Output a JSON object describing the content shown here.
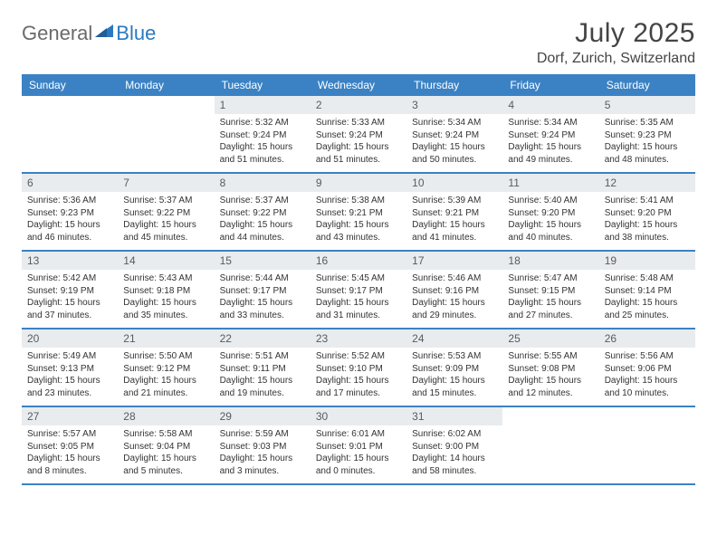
{
  "logo": {
    "text1": "General",
    "text2": "Blue",
    "icon_color": "#2a79c0",
    "text_color_gray": "#6a6a6a"
  },
  "title": "July 2025",
  "location": "Dorf, Zurich, Switzerland",
  "colors": {
    "header_bg": "#3b82c4",
    "header_text": "#ffffff",
    "daynum_bg": "#e9ecef",
    "daynum_text": "#5a5a5a",
    "body_text": "#333333",
    "row_border": "#3b82c4"
  },
  "weekdays": [
    "Sunday",
    "Monday",
    "Tuesday",
    "Wednesday",
    "Thursday",
    "Friday",
    "Saturday"
  ],
  "weeks": [
    [
      null,
      null,
      {
        "day": "1",
        "sunrise": "Sunrise: 5:32 AM",
        "sunset": "Sunset: 9:24 PM",
        "daylight": "Daylight: 15 hours and 51 minutes."
      },
      {
        "day": "2",
        "sunrise": "Sunrise: 5:33 AM",
        "sunset": "Sunset: 9:24 PM",
        "daylight": "Daylight: 15 hours and 51 minutes."
      },
      {
        "day": "3",
        "sunrise": "Sunrise: 5:34 AM",
        "sunset": "Sunset: 9:24 PM",
        "daylight": "Daylight: 15 hours and 50 minutes."
      },
      {
        "day": "4",
        "sunrise": "Sunrise: 5:34 AM",
        "sunset": "Sunset: 9:24 PM",
        "daylight": "Daylight: 15 hours and 49 minutes."
      },
      {
        "day": "5",
        "sunrise": "Sunrise: 5:35 AM",
        "sunset": "Sunset: 9:23 PM",
        "daylight": "Daylight: 15 hours and 48 minutes."
      }
    ],
    [
      {
        "day": "6",
        "sunrise": "Sunrise: 5:36 AM",
        "sunset": "Sunset: 9:23 PM",
        "daylight": "Daylight: 15 hours and 46 minutes."
      },
      {
        "day": "7",
        "sunrise": "Sunrise: 5:37 AM",
        "sunset": "Sunset: 9:22 PM",
        "daylight": "Daylight: 15 hours and 45 minutes."
      },
      {
        "day": "8",
        "sunrise": "Sunrise: 5:37 AM",
        "sunset": "Sunset: 9:22 PM",
        "daylight": "Daylight: 15 hours and 44 minutes."
      },
      {
        "day": "9",
        "sunrise": "Sunrise: 5:38 AM",
        "sunset": "Sunset: 9:21 PM",
        "daylight": "Daylight: 15 hours and 43 minutes."
      },
      {
        "day": "10",
        "sunrise": "Sunrise: 5:39 AM",
        "sunset": "Sunset: 9:21 PM",
        "daylight": "Daylight: 15 hours and 41 minutes."
      },
      {
        "day": "11",
        "sunrise": "Sunrise: 5:40 AM",
        "sunset": "Sunset: 9:20 PM",
        "daylight": "Daylight: 15 hours and 40 minutes."
      },
      {
        "day": "12",
        "sunrise": "Sunrise: 5:41 AM",
        "sunset": "Sunset: 9:20 PM",
        "daylight": "Daylight: 15 hours and 38 minutes."
      }
    ],
    [
      {
        "day": "13",
        "sunrise": "Sunrise: 5:42 AM",
        "sunset": "Sunset: 9:19 PM",
        "daylight": "Daylight: 15 hours and 37 minutes."
      },
      {
        "day": "14",
        "sunrise": "Sunrise: 5:43 AM",
        "sunset": "Sunset: 9:18 PM",
        "daylight": "Daylight: 15 hours and 35 minutes."
      },
      {
        "day": "15",
        "sunrise": "Sunrise: 5:44 AM",
        "sunset": "Sunset: 9:17 PM",
        "daylight": "Daylight: 15 hours and 33 minutes."
      },
      {
        "day": "16",
        "sunrise": "Sunrise: 5:45 AM",
        "sunset": "Sunset: 9:17 PM",
        "daylight": "Daylight: 15 hours and 31 minutes."
      },
      {
        "day": "17",
        "sunrise": "Sunrise: 5:46 AM",
        "sunset": "Sunset: 9:16 PM",
        "daylight": "Daylight: 15 hours and 29 minutes."
      },
      {
        "day": "18",
        "sunrise": "Sunrise: 5:47 AM",
        "sunset": "Sunset: 9:15 PM",
        "daylight": "Daylight: 15 hours and 27 minutes."
      },
      {
        "day": "19",
        "sunrise": "Sunrise: 5:48 AM",
        "sunset": "Sunset: 9:14 PM",
        "daylight": "Daylight: 15 hours and 25 minutes."
      }
    ],
    [
      {
        "day": "20",
        "sunrise": "Sunrise: 5:49 AM",
        "sunset": "Sunset: 9:13 PM",
        "daylight": "Daylight: 15 hours and 23 minutes."
      },
      {
        "day": "21",
        "sunrise": "Sunrise: 5:50 AM",
        "sunset": "Sunset: 9:12 PM",
        "daylight": "Daylight: 15 hours and 21 minutes."
      },
      {
        "day": "22",
        "sunrise": "Sunrise: 5:51 AM",
        "sunset": "Sunset: 9:11 PM",
        "daylight": "Daylight: 15 hours and 19 minutes."
      },
      {
        "day": "23",
        "sunrise": "Sunrise: 5:52 AM",
        "sunset": "Sunset: 9:10 PM",
        "daylight": "Daylight: 15 hours and 17 minutes."
      },
      {
        "day": "24",
        "sunrise": "Sunrise: 5:53 AM",
        "sunset": "Sunset: 9:09 PM",
        "daylight": "Daylight: 15 hours and 15 minutes."
      },
      {
        "day": "25",
        "sunrise": "Sunrise: 5:55 AM",
        "sunset": "Sunset: 9:08 PM",
        "daylight": "Daylight: 15 hours and 12 minutes."
      },
      {
        "day": "26",
        "sunrise": "Sunrise: 5:56 AM",
        "sunset": "Sunset: 9:06 PM",
        "daylight": "Daylight: 15 hours and 10 minutes."
      }
    ],
    [
      {
        "day": "27",
        "sunrise": "Sunrise: 5:57 AM",
        "sunset": "Sunset: 9:05 PM",
        "daylight": "Daylight: 15 hours and 8 minutes."
      },
      {
        "day": "28",
        "sunrise": "Sunrise: 5:58 AM",
        "sunset": "Sunset: 9:04 PM",
        "daylight": "Daylight: 15 hours and 5 minutes."
      },
      {
        "day": "29",
        "sunrise": "Sunrise: 5:59 AM",
        "sunset": "Sunset: 9:03 PM",
        "daylight": "Daylight: 15 hours and 3 minutes."
      },
      {
        "day": "30",
        "sunrise": "Sunrise: 6:01 AM",
        "sunset": "Sunset: 9:01 PM",
        "daylight": "Daylight: 15 hours and 0 minutes."
      },
      {
        "day": "31",
        "sunrise": "Sunrise: 6:02 AM",
        "sunset": "Sunset: 9:00 PM",
        "daylight": "Daylight: 14 hours and 58 minutes."
      },
      null,
      null
    ]
  ]
}
